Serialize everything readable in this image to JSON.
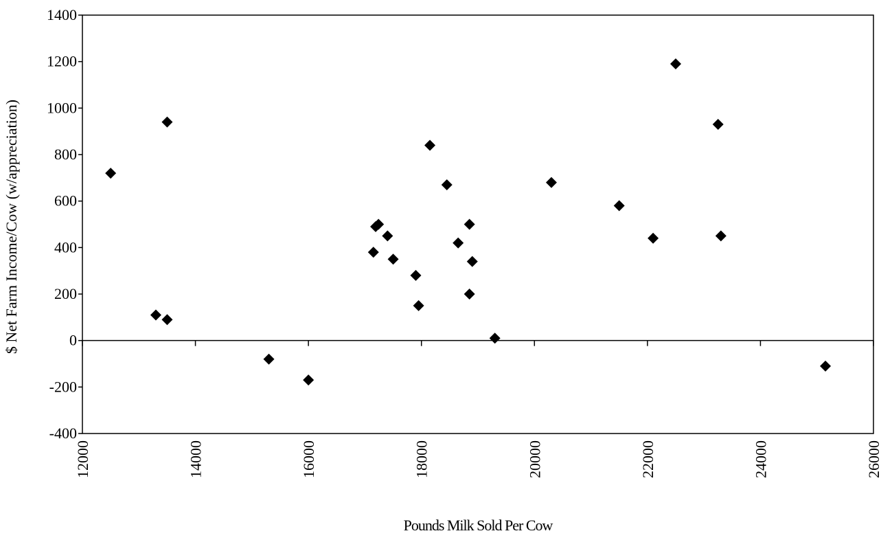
{
  "chart_data": {
    "type": "scatter",
    "x_label": "Pounds Milk Sold Per Cow",
    "y_label": "$ Net Farm Income/Cow (w/appreciation)",
    "color": "#000000",
    "x": [
      12500,
      13300,
      13500,
      13500,
      15300,
      16000,
      17150,
      17190,
      17240,
      17400,
      17500,
      17900,
      17950,
      18150,
      18450,
      18650,
      18850,
      18900,
      18850,
      19300,
      20300,
      21500,
      22100,
      22500,
      23250,
      23300,
      25150
    ],
    "values": [
      720,
      110,
      940,
      90,
      -80,
      -170,
      380,
      490,
      500,
      450,
      350,
      280,
      150,
      840,
      670,
      420,
      200,
      340,
      500,
      10,
      680,
      580,
      440,
      1190,
      930,
      450,
      -110
    ],
    "xlim": [
      12000,
      26000
    ],
    "xticks": [
      12000,
      14000,
      16000,
      18000,
      20000,
      22000,
      24000,
      26000
    ],
    "ylim": [
      -400,
      1400
    ],
    "yticks": [
      -400,
      -200,
      0,
      200,
      400,
      600,
      800,
      1000,
      1200,
      1400
    ]
  }
}
